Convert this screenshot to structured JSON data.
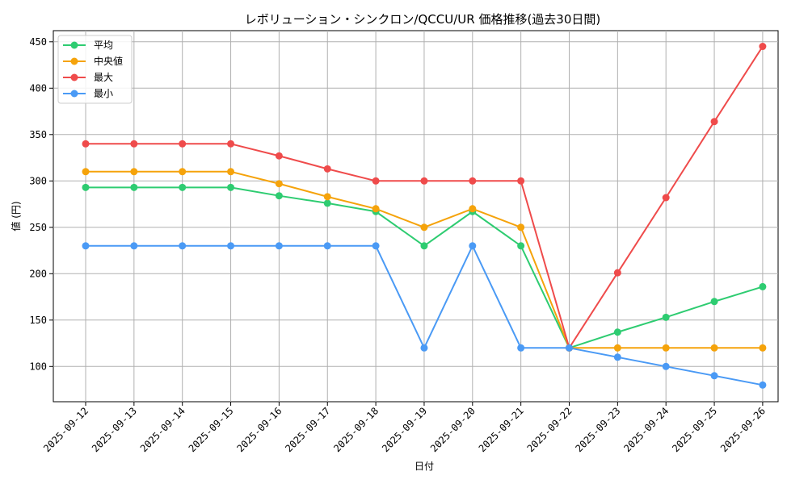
{
  "chart_data": {
    "type": "line",
    "title": "レボリューション・シンクロン/QCCU/UR 価格推移(過去30日間)",
    "xlabel": "日付",
    "ylabel": "値 (円)",
    "categories": [
      "2025-09-12",
      "2025-09-13",
      "2025-09-14",
      "2025-09-15",
      "2025-09-16",
      "2025-09-17",
      "2025-09-18",
      "2025-09-19",
      "2025-09-20",
      "2025-09-21",
      "2025-09-22",
      "2025-09-23",
      "2025-09-24",
      "2025-09-25",
      "2025-09-26"
    ],
    "ylim": [
      62,
      462
    ],
    "yticks": [
      100,
      150,
      200,
      250,
      300,
      350,
      400,
      450
    ],
    "grid": true,
    "legend_position": "top-left",
    "series": [
      {
        "name": "平均",
        "color": "#2ecc71",
        "values": [
          293,
          293,
          293,
          293,
          284,
          276,
          267,
          230,
          267,
          230,
          120,
          137,
          153,
          170,
          186
        ]
      },
      {
        "name": "中央値",
        "color": "#f5a30b",
        "values": [
          310,
          310,
          310,
          310,
          297,
          283,
          270,
          250,
          270,
          250,
          120,
          120,
          120,
          120,
          120
        ]
      },
      {
        "name": "最大",
        "color": "#ef4b4b",
        "values": [
          340,
          340,
          340,
          340,
          327,
          313,
          300,
          300,
          300,
          300,
          120,
          201,
          282,
          364,
          445
        ]
      },
      {
        "name": "最小",
        "color": "#4a9af5",
        "values": [
          230,
          230,
          230,
          230,
          230,
          230,
          230,
          120,
          230,
          120,
          120,
          110,
          100,
          90,
          80
        ]
      }
    ]
  }
}
